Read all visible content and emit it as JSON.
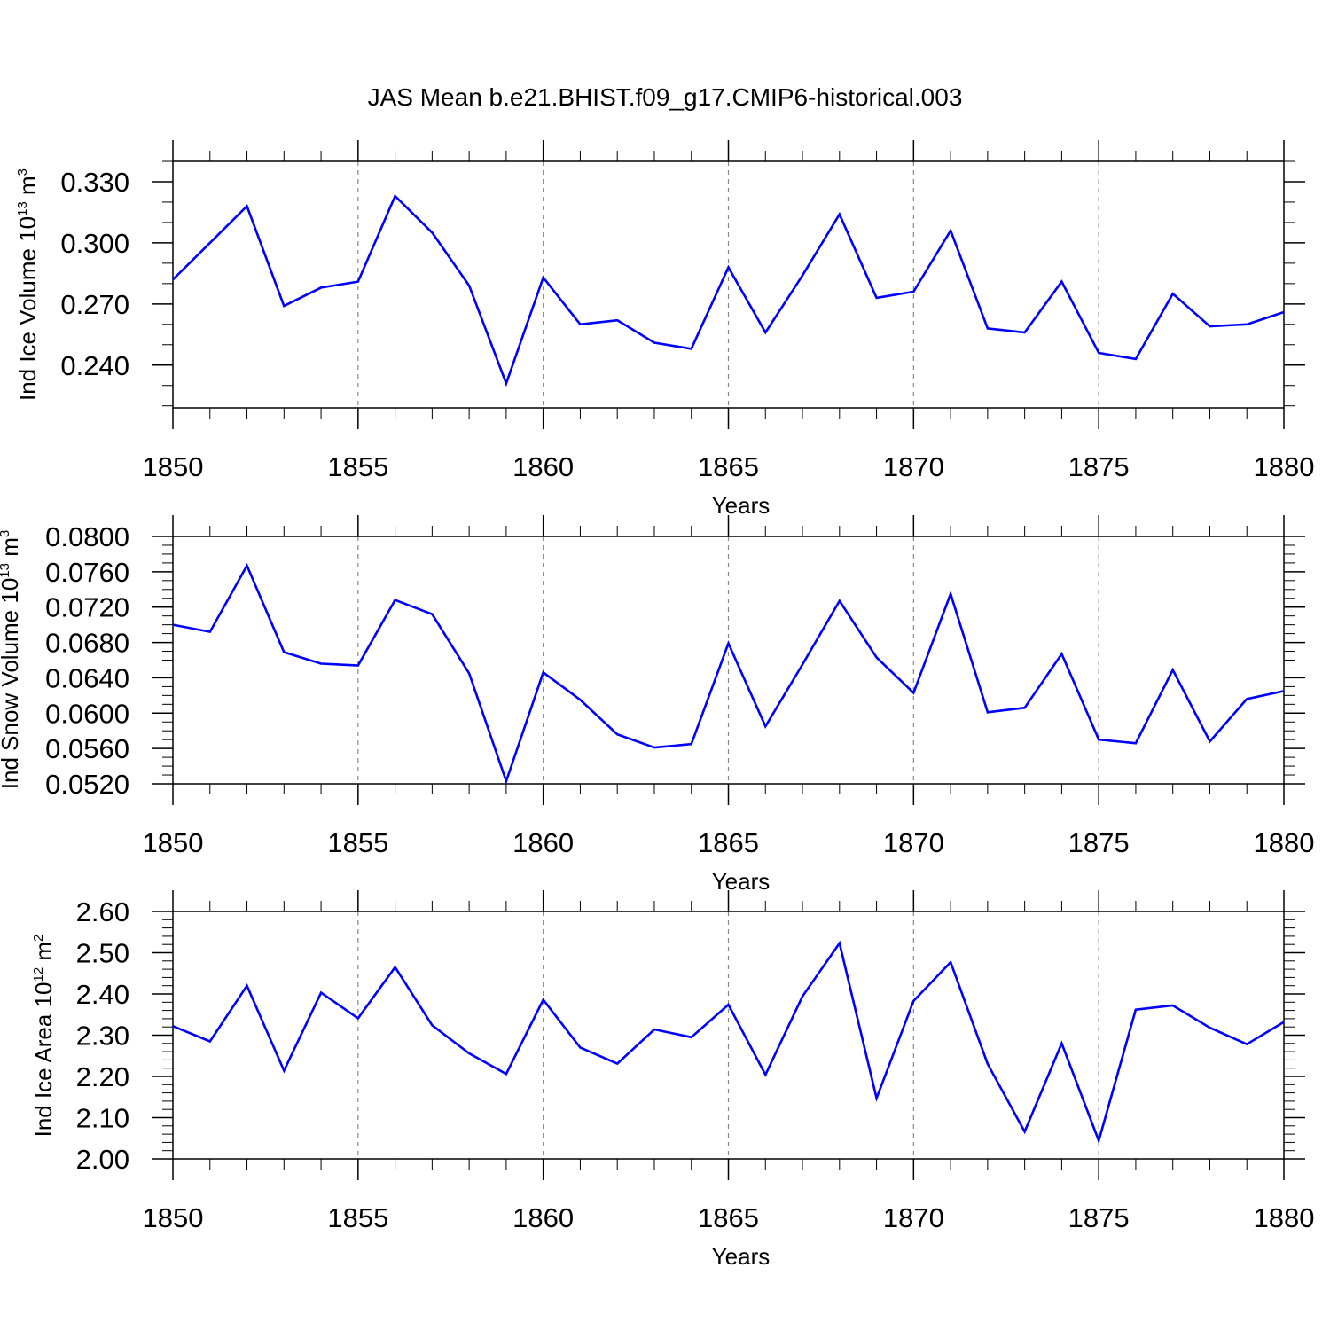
{
  "title": "JAS Mean b.e21.BHIST.f09_g17.CMIP6-historical.003",
  "colors": {
    "line": "#0000ff",
    "axis": "#000000",
    "grid": "#888888"
  },
  "chart_data": [
    {
      "type": "line",
      "title": "JAS Mean b.e21.BHIST.f09_g17.CMIP6-historical.003",
      "xlabel": "Years",
      "ylabel": {
        "text": "Ind Ice Volume 10",
        "exp1": "13",
        "unit": " m",
        "exp2": "3"
      },
      "xlim": [
        1850,
        1880
      ],
      "ylim": [
        0.219,
        0.34
      ],
      "xticks": [
        1850,
        1855,
        1860,
        1865,
        1870,
        1875,
        1880
      ],
      "xtick_labels": [
        "1850",
        "1855",
        "1860",
        "1865",
        "1870",
        "1875",
        "1880"
      ],
      "yticks": [
        0.24,
        0.27,
        0.3,
        0.33
      ],
      "ytick_labels": [
        "0.240",
        "0.270",
        "0.300",
        "0.330"
      ],
      "y_minor_step": 0.01,
      "vertical_grid": [
        1855,
        1860,
        1865,
        1870,
        1875
      ],
      "series": [
        {
          "name": "Ind Ice Volume",
          "x": [
            1850,
            1851,
            1852,
            1853,
            1854,
            1855,
            1856,
            1857,
            1858,
            1859,
            1860,
            1861,
            1862,
            1863,
            1864,
            1865,
            1866,
            1867,
            1868,
            1869,
            1870,
            1871,
            1872,
            1873,
            1874,
            1875,
            1876,
            1877,
            1878,
            1879,
            1880
          ],
          "values": [
            0.282,
            0.3,
            0.318,
            0.269,
            0.278,
            0.281,
            0.323,
            0.305,
            0.279,
            0.231,
            0.283,
            0.26,
            0.262,
            0.251,
            0.248,
            0.288,
            0.256,
            0.284,
            0.314,
            0.273,
            0.276,
            0.306,
            0.258,
            0.256,
            0.281,
            0.246,
            0.243,
            0.275,
            0.259,
            0.26,
            0.266
          ]
        }
      ]
    },
    {
      "type": "line",
      "xlabel": "Years",
      "ylabel": {
        "text": "Ind Snow Volume 10",
        "exp1": "13",
        "unit": " m",
        "exp2": "3"
      },
      "xlim": [
        1850,
        1880
      ],
      "ylim": [
        0.052,
        0.08
      ],
      "xticks": [
        1850,
        1855,
        1860,
        1865,
        1870,
        1875,
        1880
      ],
      "xtick_labels": [
        "1850",
        "1855",
        "1860",
        "1865",
        "1870",
        "1875",
        "1880"
      ],
      "yticks": [
        0.052,
        0.056,
        0.06,
        0.064,
        0.068,
        0.072,
        0.076,
        0.08
      ],
      "ytick_labels": [
        "0.0520",
        "0.0560",
        "0.0600",
        "0.0640",
        "0.0680",
        "0.0720",
        "0.0760",
        "0.0800"
      ],
      "y_minor_step": 0.001,
      "vertical_grid": [
        1855,
        1860,
        1865,
        1870,
        1875
      ],
      "series": [
        {
          "name": "Ind Snow Volume",
          "x": [
            1850,
            1851,
            1852,
            1853,
            1854,
            1855,
            1856,
            1857,
            1858,
            1859,
            1860,
            1861,
            1862,
            1863,
            1864,
            1865,
            1866,
            1867,
            1868,
            1869,
            1870,
            1871,
            1872,
            1873,
            1874,
            1875,
            1876,
            1877,
            1878,
            1879,
            1880
          ],
          "values": [
            0.07,
            0.0692,
            0.0767,
            0.0669,
            0.0656,
            0.0654,
            0.0728,
            0.0712,
            0.0645,
            0.0523,
            0.0646,
            0.0615,
            0.0576,
            0.0561,
            0.0565,
            0.0679,
            0.0585,
            0.0655,
            0.0727,
            0.0663,
            0.0623,
            0.0735,
            0.0601,
            0.0606,
            0.0667,
            0.057,
            0.0566,
            0.0649,
            0.0568,
            0.0616,
            0.0625
          ]
        }
      ]
    },
    {
      "type": "line",
      "xlabel": "Years",
      "ylabel": {
        "text": "Ind Ice Area 10",
        "exp1": "12",
        "unit": " m",
        "exp2": "2"
      },
      "xlim": [
        1850,
        1880
      ],
      "ylim": [
        2.0,
        2.6
      ],
      "xticks": [
        1850,
        1855,
        1860,
        1865,
        1870,
        1875,
        1880
      ],
      "xtick_labels": [
        "1850",
        "1855",
        "1860",
        "1865",
        "1870",
        "1875",
        "1880"
      ],
      "yticks": [
        2.0,
        2.1,
        2.2,
        2.3,
        2.4,
        2.5,
        2.6
      ],
      "ytick_labels": [
        "2.00",
        "2.10",
        "2.20",
        "2.30",
        "2.40",
        "2.50",
        "2.60"
      ],
      "y_minor_step": 0.02,
      "vertical_grid": [
        1855,
        1860,
        1865,
        1870,
        1875
      ],
      "series": [
        {
          "name": "Ind Ice Area",
          "x": [
            1850,
            1851,
            1852,
            1853,
            1854,
            1855,
            1856,
            1857,
            1858,
            1859,
            1860,
            1861,
            1862,
            1863,
            1864,
            1865,
            1866,
            1867,
            1868,
            1869,
            1870,
            1871,
            1872,
            1873,
            1874,
            1875,
            1876,
            1877,
            1878,
            1879,
            1880
          ],
          "values": [
            2.322,
            2.285,
            2.42,
            2.214,
            2.403,
            2.341,
            2.465,
            2.324,
            2.256,
            2.206,
            2.386,
            2.27,
            2.231,
            2.314,
            2.295,
            2.374,
            2.204,
            2.394,
            2.523,
            2.147,
            2.383,
            2.477,
            2.23,
            2.066,
            2.28,
            2.044,
            2.362,
            2.372,
            2.318,
            2.278,
            2.332
          ]
        }
      ]
    }
  ]
}
